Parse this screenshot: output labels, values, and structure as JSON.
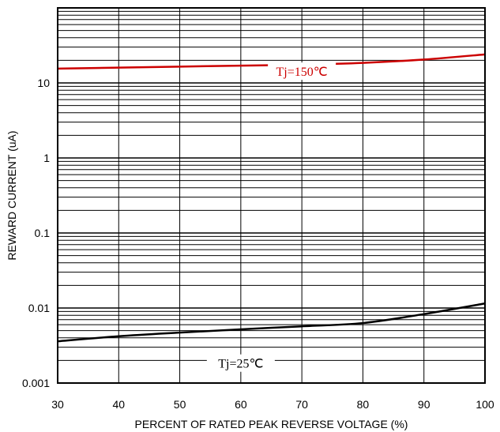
{
  "chart_data": {
    "type": "line",
    "title": "",
    "xlabel": "PERCENT OF RATED PEAK REVERSE VOLTAGE (%)",
    "ylabel": "REWARD CURRENT (uA)",
    "xlim": [
      30,
      100
    ],
    "ylim": [
      0.001,
      100
    ],
    "y_scale": "log",
    "grid": true,
    "x_ticks": [
      "30",
      "40",
      "50",
      "60",
      "70",
      "80",
      "90",
      "100"
    ],
    "y_ticks": [
      "0.001",
      "0.01",
      "0.1",
      "1",
      "10"
    ],
    "series": [
      {
        "name": "Tj=150℃",
        "color": "#cc0000",
        "x": [
          30,
          40,
          50,
          60,
          70,
          80,
          90,
          100
        ],
        "y": [
          15.5,
          16.0,
          16.5,
          17.0,
          17.5,
          18.5,
          20.5,
          24.0
        ]
      },
      {
        "name": "Tj=25℃",
        "color": "#000000",
        "x": [
          30,
          40,
          50,
          60,
          70,
          80,
          90,
          100
        ],
        "y": [
          0.0036,
          0.0042,
          0.0047,
          0.0052,
          0.0057,
          0.0063,
          0.0083,
          0.0115
        ]
      }
    ]
  }
}
